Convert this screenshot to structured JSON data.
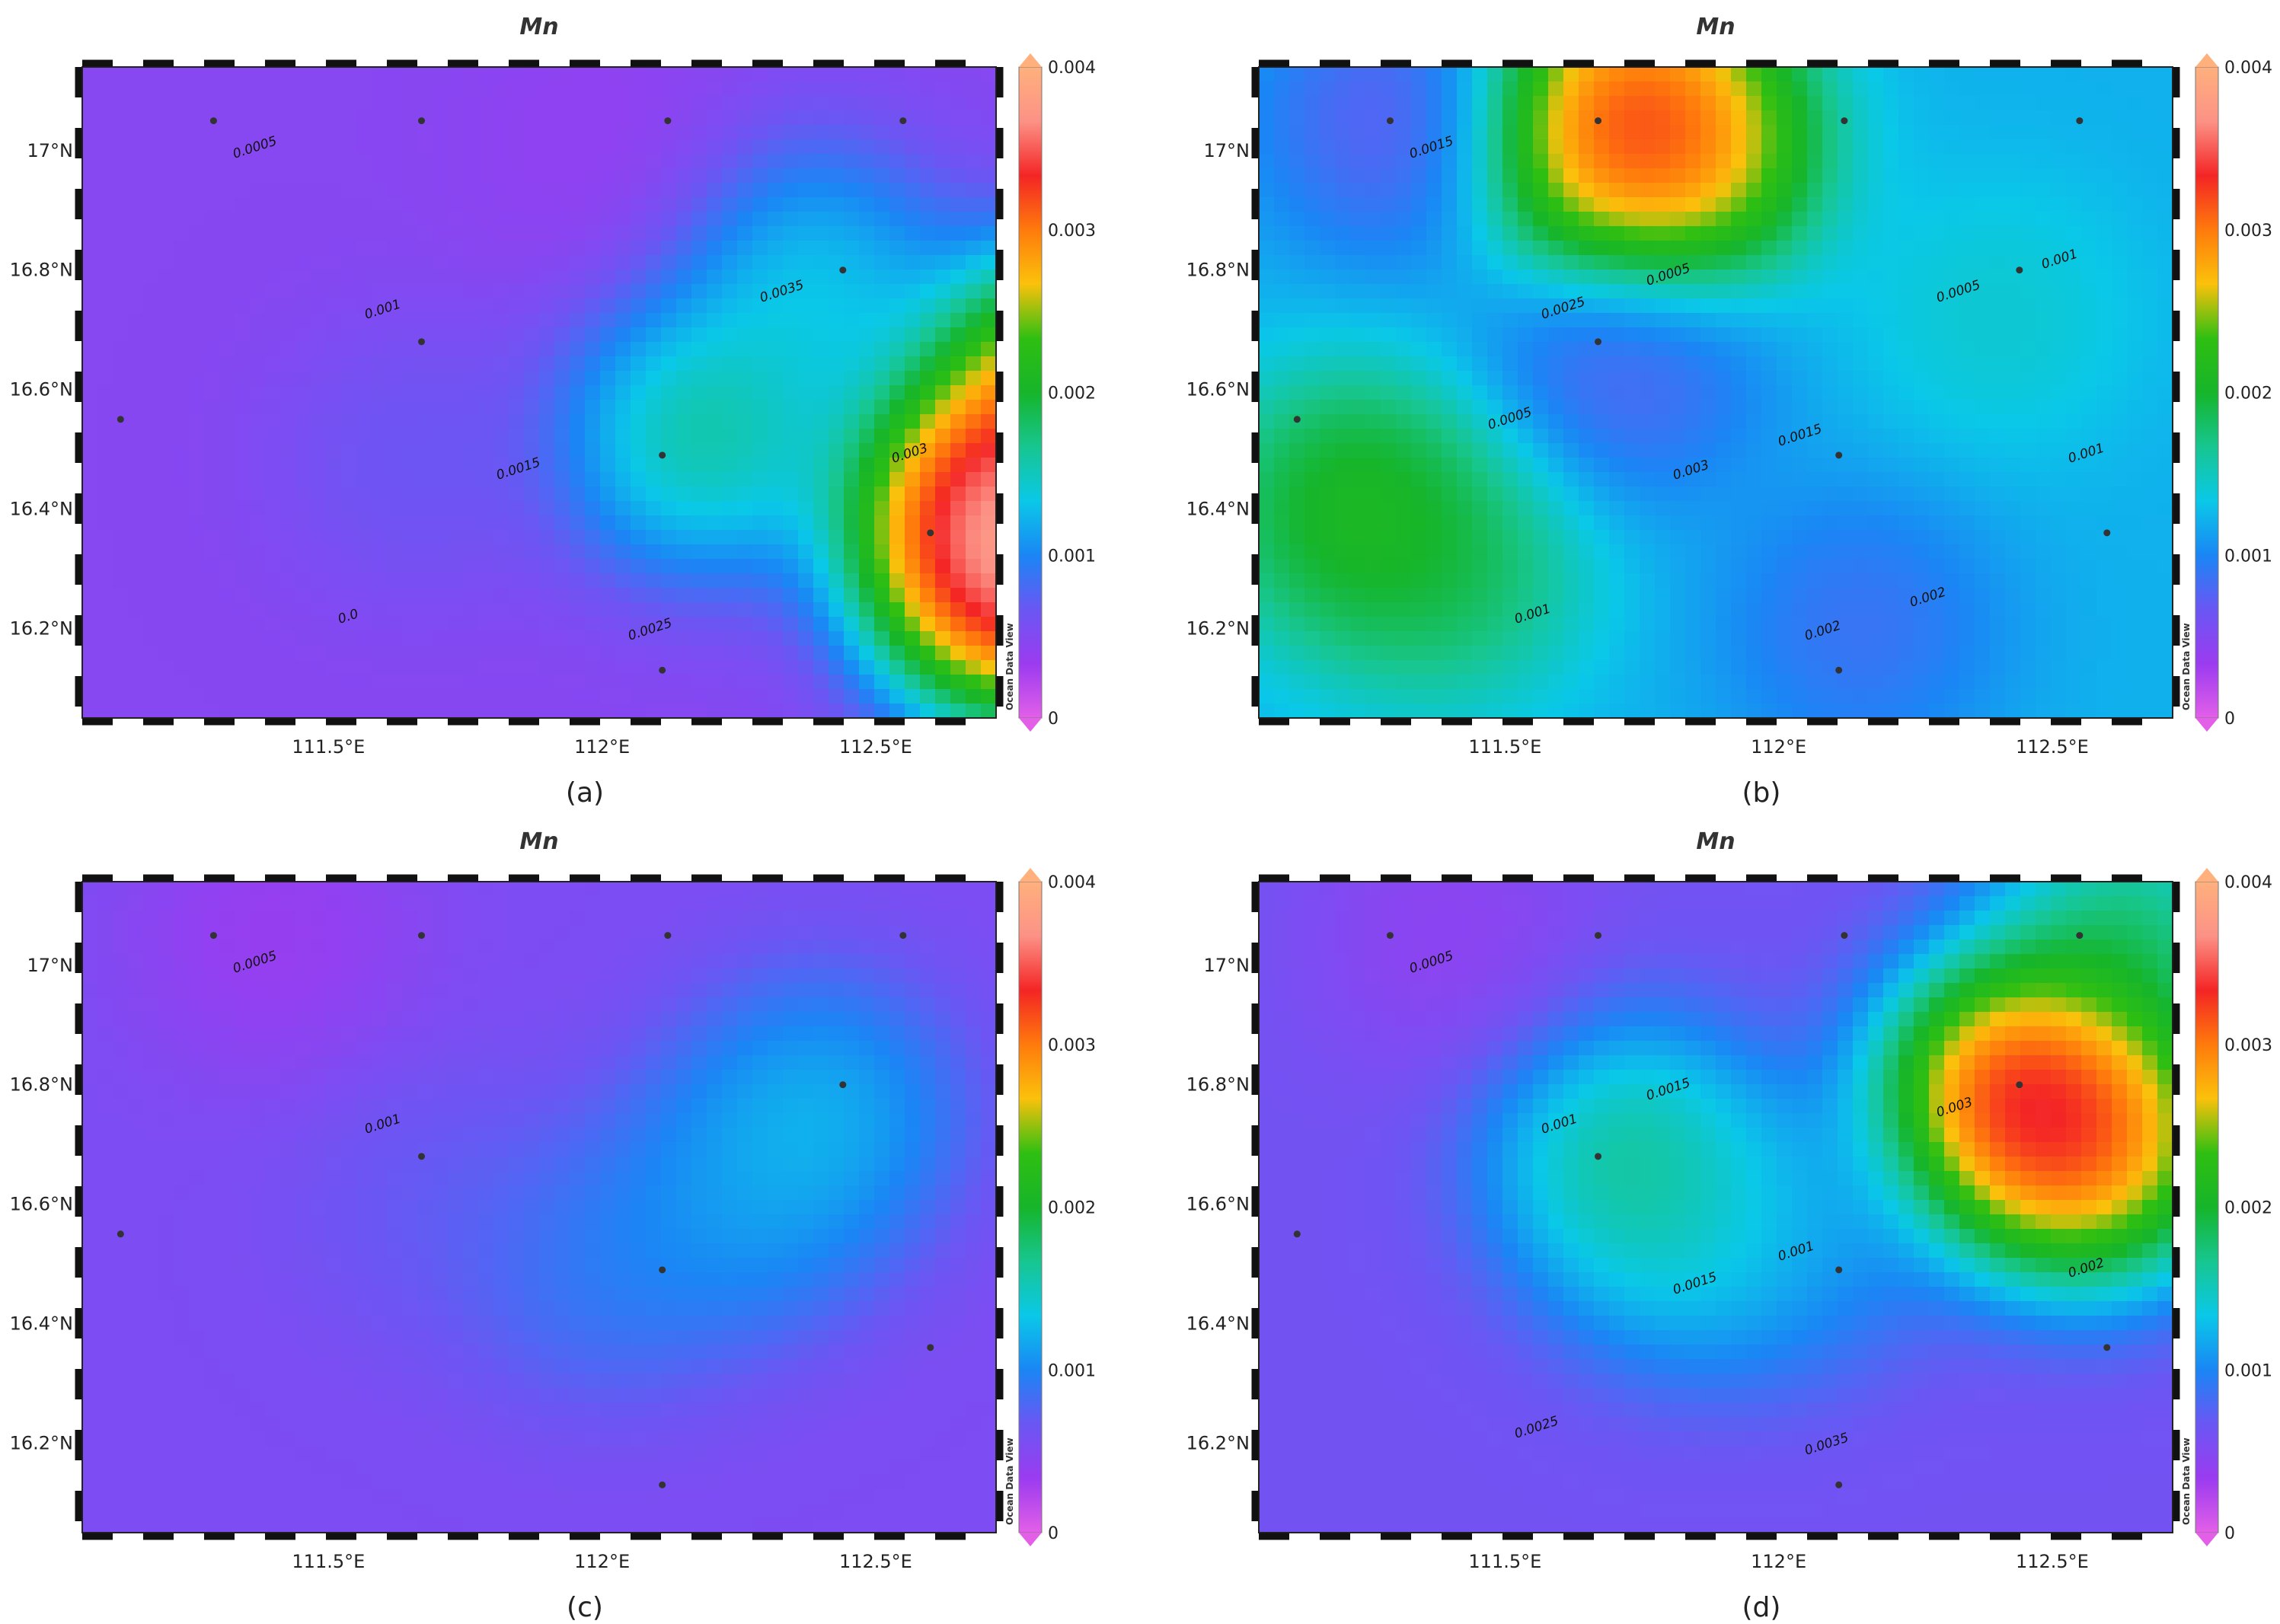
{
  "figure": {
    "panels": [
      {
        "id": "a",
        "title": "Mn",
        "caption": "(a)",
        "contour_labels": [
          "0.0005",
          "0.001",
          "0.0015",
          "0.0025",
          "0.0035",
          "0.003",
          "0.0"
        ],
        "peaks": [
          [
            112.78,
            16.27,
            0.0042
          ],
          [
            112.7,
            16.4,
            0.004
          ],
          [
            112.85,
            16.6,
            0.0036
          ],
          [
            112.18,
            16.52,
            0.0019
          ],
          [
            112.38,
            16.78,
            0.0015
          ],
          [
            111.66,
            16.48,
            0.0006
          ],
          [
            112.0,
            17.0,
            0.00025
          ]
        ],
        "bg": 0.00035
      },
      {
        "id": "b",
        "title": "Mn",
        "caption": "(b)",
        "contour_labels": [
          "0.0015",
          "0.0025",
          "0.003",
          "0.002",
          "0.0005",
          "0.001",
          "0.001",
          "0.0005",
          "0.0015",
          "0.002",
          "0.001",
          "0.0005"
        ],
        "peaks": [
          [
            111.72,
            17.04,
            0.0034
          ],
          [
            111.8,
            17.0,
            0.0028
          ],
          [
            111.22,
            16.4,
            0.0021
          ],
          [
            111.4,
            16.3,
            0.0017
          ],
          [
            111.3,
            17.05,
            0.0002
          ],
          [
            111.72,
            16.65,
            0.00025
          ],
          [
            112.4,
            16.72,
            0.0012
          ],
          [
            112.15,
            16.2,
            0.0004
          ]
        ],
        "bg": 0.0009
      },
      {
        "id": "c",
        "title": "Mn",
        "caption": "(c)",
        "contour_labels": [
          "0.0005",
          "0.001"
        ],
        "peaks": [
          [
            112.4,
            16.75,
            0.0013
          ],
          [
            112.25,
            16.6,
            0.0011
          ],
          [
            112.0,
            16.5,
            0.0009
          ],
          [
            111.7,
            16.6,
            0.0006
          ],
          [
            111.4,
            17.05,
            0.00015
          ]
        ],
        "bg": 0.0004
      },
      {
        "id": "d",
        "title": "Mn",
        "caption": "(d)",
        "contour_labels": [
          "0.0005",
          "0.001",
          "0.0015",
          "0.0035",
          "0.003",
          "0.002",
          "0.0025",
          "0.0015",
          "0.001"
        ],
        "peaks": [
          [
            112.44,
            16.78,
            0.004
          ],
          [
            112.58,
            16.7,
            0.0033
          ],
          [
            111.72,
            16.68,
            0.0018
          ],
          [
            111.85,
            16.55,
            0.0014
          ],
          [
            112.65,
            17.05,
            0.002
          ],
          [
            112.05,
            16.55,
            0.001
          ],
          [
            111.4,
            17.05,
            0.0002
          ]
        ],
        "bg": 0.00045
      }
    ],
    "colorbar": {
      "ticks": [
        "0",
        "0.001",
        "0.002",
        "0.003",
        "0.004"
      ],
      "watermark": "Ocean Data View",
      "stops": [
        "#e35fe8",
        "#9b3bf0",
        "#6a57f3",
        "#1a86f5",
        "#0ac8e8",
        "#17c68f",
        "#16b52a",
        "#2fbf12",
        "#fbc10b",
        "#ff7a0c",
        "#f42525",
        "#fc9286",
        "#ffb07d"
      ]
    },
    "x_ticks": [
      "111.5°E",
      "112°E",
      "112.5°E"
    ],
    "y_ticks": [
      "17°N",
      "16.8°N",
      "16.6°N",
      "16.4°N",
      "16.2°N"
    ],
    "stations": [
      [
        111.29,
        17.05
      ],
      [
        111.67,
        17.05
      ],
      [
        112.12,
        17.05
      ],
      [
        112.55,
        17.05
      ],
      [
        111.12,
        16.55
      ],
      [
        111.67,
        16.68
      ],
      [
        112.11,
        16.49
      ],
      [
        112.44,
        16.8
      ],
      [
        112.6,
        16.36
      ],
      [
        112.11,
        16.13
      ]
    ]
  },
  "chart_data": [
    {
      "type": "heatmap",
      "title": "Mn",
      "caption": "(a)",
      "xlabel": "",
      "ylabel": "",
      "x_ticks": [
        "111.5°E",
        "112°E",
        "112.5°E"
      ],
      "y_ticks": [
        "17°N",
        "16.8°N",
        "16.6°N",
        "16.4°N",
        "16.2°N"
      ],
      "xlim": [
        111.05,
        112.72
      ],
      "ylim": [
        16.05,
        17.14
      ],
      "value_range": [
        0,
        0.004
      ],
      "contour_levels": [
        0.0005,
        0.001,
        0.0015,
        0.002,
        0.0025,
        0.003,
        0.0035
      ],
      "description": "Maximum Mn (>0.004) in the south-east corner; intermediate (~0.002) near 112.2°E 16.5°N; low (<0.0005) in west and north."
    },
    {
      "type": "heatmap",
      "title": "Mn",
      "caption": "(b)",
      "xlabel": "",
      "ylabel": "",
      "x_ticks": [
        "111.5°E",
        "112°E",
        "112.5°E"
      ],
      "y_ticks": [
        "17°N",
        "16.8°N",
        "16.6°N",
        "16.4°N",
        "16.2°N"
      ],
      "xlim": [
        111.05,
        112.72
      ],
      "ylim": [
        16.05,
        17.14
      ],
      "value_range": [
        0,
        0.004
      ],
      "contour_levels": [
        0.0005,
        0.001,
        0.0015,
        0.002,
        0.0025,
        0.003
      ],
      "description": "Maximum (~0.003+) near 111.72°E 17.05°N; elevated (~0.002) in west; low (<0.0005) centre 111.7°E 16.65°N."
    },
    {
      "type": "heatmap",
      "title": "Mn",
      "caption": "(c)",
      "xlabel": "",
      "ylabel": "",
      "x_ticks": [
        "111.5°E",
        "112°E",
        "112.5°E"
      ],
      "y_ticks": [
        "17°N",
        "16.8°N",
        "16.6°N",
        "16.4°N",
        "16.2°N"
      ],
      "xlim": [
        111.05,
        112.72
      ],
      "ylim": [
        16.05,
        17.14
      ],
      "value_range": [
        0,
        0.004
      ],
      "contour_levels": [
        0.0005,
        0.001
      ],
      "description": "Mostly low values; moderate (~0.0013) near 112.4°E 16.75°N."
    },
    {
      "type": "heatmap",
      "title": "Mn",
      "caption": "(d)",
      "xlabel": "",
      "ylabel": "",
      "x_ticks": [
        "111.5°E",
        "112°E",
        "112.5°E"
      ],
      "y_ticks": [
        "17°N",
        "16.8°N",
        "16.6°N",
        "16.4°N",
        "16.2°N"
      ],
      "xlim": [
        111.05,
        112.72
      ],
      "ylim": [
        16.05,
        17.14
      ],
      "value_range": [
        0,
        0.004
      ],
      "contour_levels": [
        0.0005,
        0.001,
        0.0015,
        0.002,
        0.0025,
        0.003,
        0.0035
      ],
      "description": "Maximum (~0.004) near 112.44°E 16.78°N; secondary (~0.0018) near 111.72°E 16.68°N."
    }
  ]
}
